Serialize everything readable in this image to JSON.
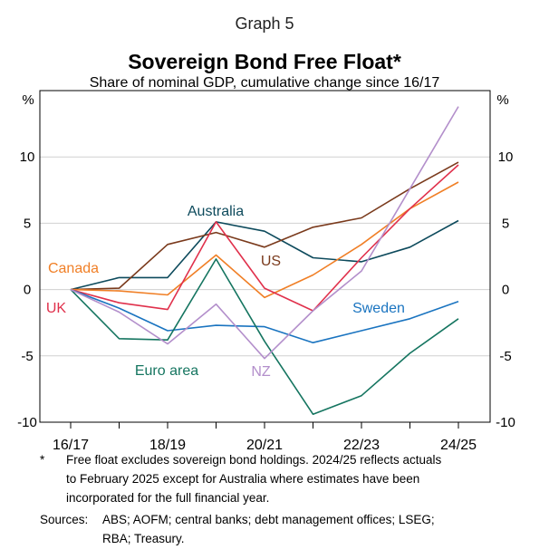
{
  "chart_data": {
    "type": "line",
    "graph_number": "Graph 5",
    "title": "Sovereign Bond Free Float*",
    "subtitle": "Share of nominal GDP, cumulative change since 16/17",
    "ylabel_left": "%",
    "ylabel_right": "%",
    "ylim": [
      -10,
      15
    ],
    "yticks": [
      10,
      5,
      0,
      -5,
      -10
    ],
    "ytick_labels": [
      "10",
      "5",
      "0",
      "-5",
      "-10"
    ],
    "x": [
      "16/17",
      "17/18",
      "18/19",
      "19/20",
      "20/21",
      "21/22",
      "22/23",
      "23/24",
      "24/25"
    ],
    "xtick_labels": [
      "16/17",
      "18/19",
      "20/21",
      "22/23",
      "24/25"
    ],
    "grid": true,
    "series": [
      {
        "name": "Australia",
        "color": "#0d4a5c",
        "values": [
          0,
          0.9,
          0.9,
          5.1,
          4.4,
          2.4,
          2.1,
          3.2,
          5.2
        ]
      },
      {
        "name": "US",
        "color": "#7a3a1c",
        "values": [
          0,
          0.1,
          3.4,
          4.3,
          3.2,
          4.7,
          5.4,
          7.6,
          9.6
        ]
      },
      {
        "name": "Canada",
        "color": "#f07f26",
        "values": [
          0,
          -0.1,
          -0.4,
          2.6,
          -0.6,
          1.1,
          3.4,
          6.1,
          8.1
        ]
      },
      {
        "name": "UK",
        "color": "#e0314c",
        "values": [
          0,
          -1.0,
          -1.5,
          5.1,
          0.1,
          -1.6,
          2.4,
          6.1,
          9.4
        ]
      },
      {
        "name": "Sweden",
        "color": "#1a74c0",
        "values": [
          0,
          -1.4,
          -3.1,
          -2.7,
          -2.8,
          -4.0,
          -3.1,
          -2.2,
          -0.9
        ]
      },
      {
        "name": "Euro area",
        "color": "#157560",
        "values": [
          0,
          -3.7,
          -3.8,
          2.3,
          -3.9,
          -9.4,
          -8.0,
          -4.8,
          -2.2
        ]
      },
      {
        "name": "NZ",
        "color": "#b38fcb",
        "values": [
          0,
          -1.7,
          -4.1,
          -1.1,
          -5.2,
          -1.6,
          1.4,
          7.6,
          13.8
        ]
      }
    ]
  },
  "notes": {
    "marker": "*",
    "line1": "Free float excludes sovereign bond holdings. 2024/25 reflects actuals",
    "line2": "to February 2025 except for Australia where estimates have been",
    "line3": "incorporated for the full financial year."
  },
  "sources": {
    "label": "Sources:",
    "line1": "ABS; AOFM; central banks; debt management offices; LSEG;",
    "line2": "RBA; Treasury."
  }
}
